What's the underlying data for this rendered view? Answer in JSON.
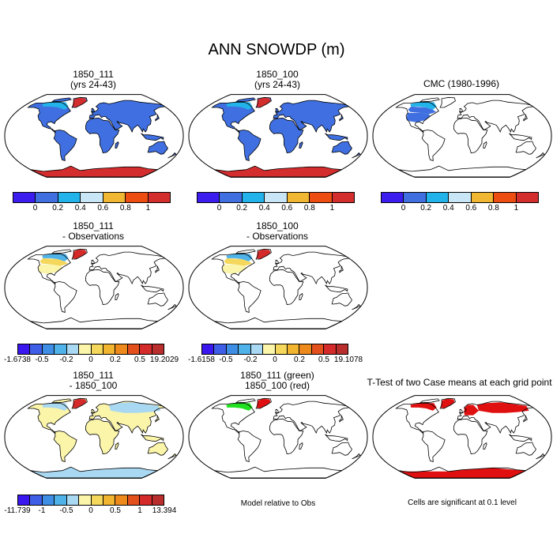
{
  "main_title": "ANN SNOWDP (m)",
  "panels": [
    {
      "id": "p1",
      "title1": "1850_111",
      "title2": "(yrs 24-43)",
      "fill": "blue-full"
    },
    {
      "id": "p2",
      "title1": "1850_100",
      "title2": "(yrs 24-43)",
      "fill": "blue-full"
    },
    {
      "id": "p3",
      "title1": "CMC (1980-1996)",
      "title2": "",
      "fill": "blue-na"
    },
    {
      "id": "p4",
      "title1": "1850_111",
      "title2": "- Observations",
      "fill": "diff-na"
    },
    {
      "id": "p5",
      "title1": "1850_100",
      "title2": "- Observations",
      "fill": "diff-na"
    },
    {
      "id": "p7",
      "title1": "1850_111",
      "title2": "- 1850_100",
      "fill": "diff-global"
    },
    {
      "id": "p8",
      "title1": "1850_111 (green)",
      "title2": "1850_100 (red)",
      "fill": "greenred"
    },
    {
      "id": "p9",
      "title1": "T-Test of two Case means at each grid point",
      "title2": "",
      "fill": "ttest"
    }
  ],
  "colorbars": {
    "abs": {
      "colors": [
        "#3b1df0",
        "#3f6fe0",
        "#22b3ea",
        "#c8e6f5",
        "#f0b732",
        "#ee4d12",
        "#d42d2d"
      ],
      "labels": [
        "0",
        "0.2",
        "0.4",
        "0.6",
        "0.8",
        "1"
      ]
    },
    "diff1": {
      "colors": [
        "#3a17ee",
        "#3f5ee8",
        "#3e8ee6",
        "#4fb3ea",
        "#a9d8f2",
        "#fbf5aa",
        "#f4d75b",
        "#f1b530",
        "#ee8a1c",
        "#e4501c",
        "#d42a2a",
        "#b92d2d"
      ],
      "labels": [
        "-1.6738",
        "-0.5",
        "-0.2",
        "0",
        "0.2",
        "0.5",
        "19.2029"
      ]
    },
    "diff2": {
      "colors": [
        "#3a17ee",
        "#3f5ee8",
        "#3e8ee6",
        "#4fb3ea",
        "#a9d8f2",
        "#fbf5aa",
        "#f4d75b",
        "#f1b530",
        "#ee8a1c",
        "#e4501c",
        "#d42a2a",
        "#b92d2d"
      ],
      "labels": [
        "-1.6158",
        "-0.5",
        "-0.2",
        "0",
        "0.2",
        "0.5",
        "19.1078"
      ]
    },
    "diff3": {
      "colors": [
        "#3a17ee",
        "#3f5ee8",
        "#3e8ee6",
        "#4fb3ea",
        "#a9d8f2",
        "#fbf5aa",
        "#f4d75b",
        "#f1b530",
        "#ee8a1c",
        "#e4501c",
        "#d42a2a",
        "#b92d2d"
      ],
      "labels": [
        "-11.739",
        "-1",
        "-0.5",
        "0",
        "0.5",
        "1",
        "13.394"
      ]
    }
  },
  "notes": {
    "model_rel": "Model relative to Obs",
    "sig": "Cells are significant at 0.1 level"
  }
}
